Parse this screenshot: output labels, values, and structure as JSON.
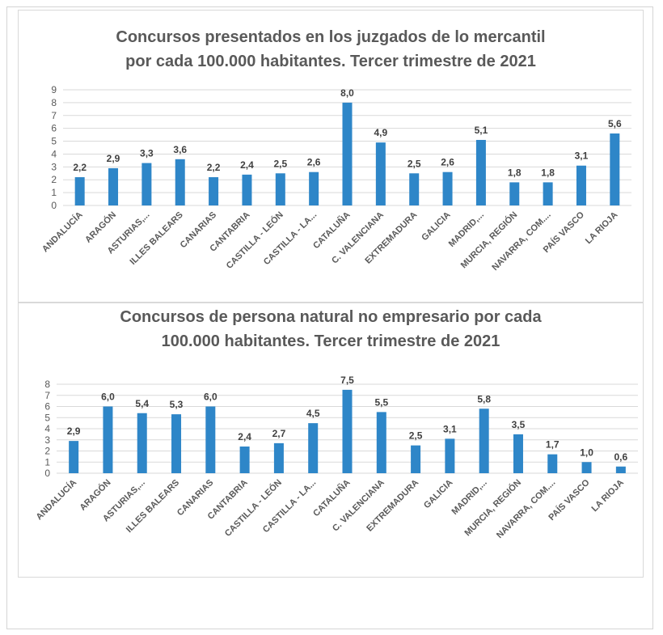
{
  "chart_data": [
    {
      "type": "bar",
      "title_lines": [
        "Concursos presentados en los juzgados de lo mercantil",
        "por cada 100.000 habitantes. Tercer trimestre de 2021"
      ],
      "categories": [
        "ANDALUCÍA",
        "ARAGÓN",
        "ASTURIAS,...",
        "ILLES BALEARS",
        "CANARIAS",
        "CANTABRIA",
        "CASTILLA - LEÓN",
        "CASTILLA - LA...",
        "CATALUÑA",
        "C. VALENCIANA",
        "EXTREMADURA",
        "GALICIA",
        "MADRID,...",
        "MURCIA, REGIÓN",
        "NAVARRA, COM....",
        "PAÍS VASCO",
        "LA RIOJA"
      ],
      "values": [
        2.2,
        2.9,
        3.3,
        3.6,
        2.2,
        2.4,
        2.5,
        2.6,
        8.0,
        4.9,
        2.5,
        2.6,
        5.1,
        1.8,
        1.8,
        3.1,
        5.6
      ],
      "data_labels": [
        "2,2",
        "2,9",
        "3,3",
        "3,6",
        "2,2",
        "2,4",
        "2,5",
        "2,6",
        "8,0",
        "4,9",
        "2,5",
        "2,6",
        "5,1",
        "1,8",
        "1,8",
        "3,1",
        "5,6"
      ],
      "yticks": [
        "0",
        "1",
        "2",
        "3",
        "4",
        "5",
        "6",
        "7",
        "8",
        "9"
      ],
      "ylim": [
        0,
        9
      ],
      "grid": true,
      "legend": "none",
      "bar_color": "#2E86C8"
    },
    {
      "type": "bar",
      "title_lines": [
        "Concursos de persona natural no empresario por cada",
        "100.000 habitantes. Tercer trimestre de 2021"
      ],
      "categories": [
        "ANDALUCÍA",
        "ARAGÓN",
        "ASTURIAS,...",
        "ILLES BALEARS",
        "CANARIAS",
        "CANTABRIA",
        "CASTILLA - LEÓN",
        "CASTILLA - LA...",
        "CATALUÑA",
        "C. VALENCIANA",
        "EXTREMADURA",
        "GALICIA",
        "MADRID,...",
        "MURCIA, REGIÓN",
        "NAVARRA, COM....",
        "PAÍS VASCO",
        "LA RIOJA"
      ],
      "values": [
        2.9,
        6.0,
        5.4,
        5.3,
        6.0,
        2.4,
        2.7,
        4.5,
        7.5,
        5.5,
        2.5,
        3.1,
        5.8,
        3.5,
        1.7,
        1.0,
        0.6
      ],
      "data_labels": [
        "2,9",
        "6,0",
        "5,4",
        "5,3",
        "6,0",
        "2,4",
        "2,7",
        "4,5",
        "7,5",
        "5,5",
        "2,5",
        "3,1",
        "5,8",
        "3,5",
        "1,7",
        "1,0",
        "0,6"
      ],
      "yticks": [
        "0",
        "1",
        "2",
        "3",
        "4",
        "5",
        "6",
        "7",
        "8"
      ],
      "ylim": [
        0,
        8
      ],
      "grid": true,
      "legend": "none",
      "bar_color": "#2E86C8"
    }
  ]
}
